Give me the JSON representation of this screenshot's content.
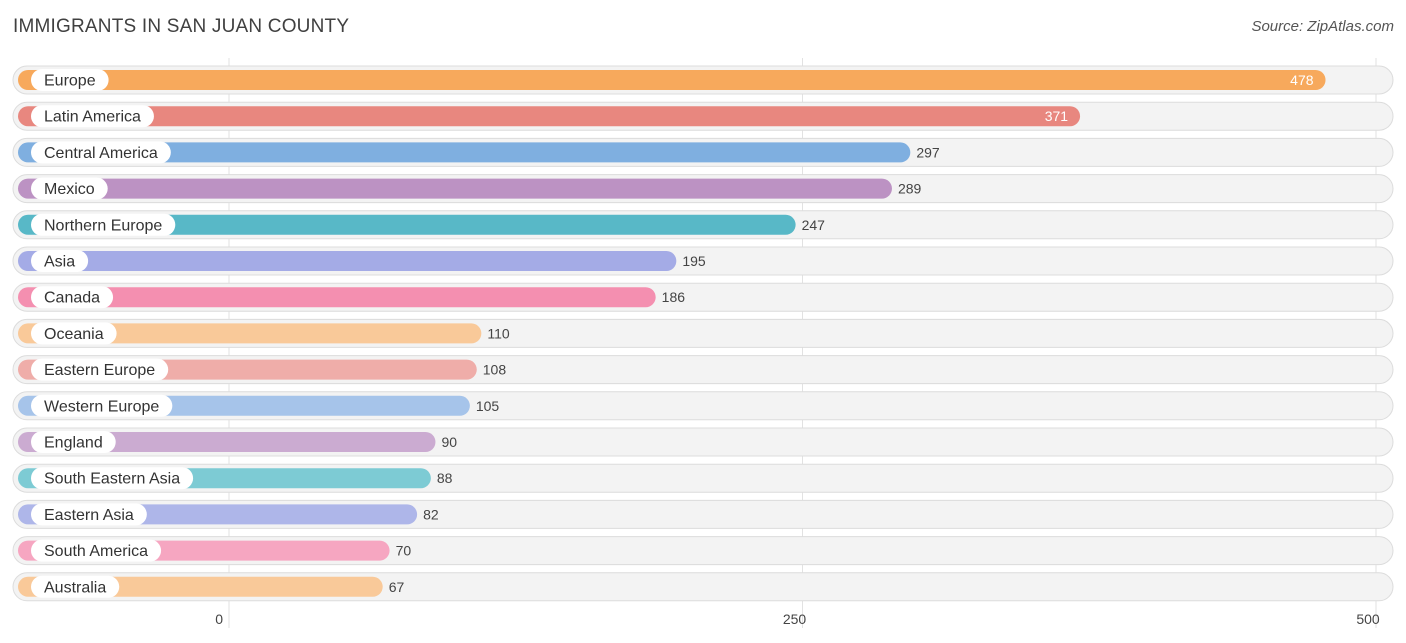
{
  "title": "IMMIGRANTS IN SAN JUAN COUNTY",
  "source": "Source: ZipAtlas.com",
  "chart_data": {
    "type": "bar",
    "orientation": "horizontal",
    "title": "IMMIGRANTS IN SAN JUAN COUNTY",
    "xlim": [
      0,
      500
    ],
    "xticks": [
      0,
      250,
      500
    ],
    "categories": [
      "Europe",
      "Latin America",
      "Central America",
      "Mexico",
      "Northern Europe",
      "Asia",
      "Canada",
      "Oceania",
      "Eastern Europe",
      "Western Europe",
      "England",
      "South Eastern Asia",
      "Eastern Asia",
      "South America",
      "Australia"
    ],
    "values": [
      478,
      371,
      297,
      289,
      247,
      195,
      186,
      110,
      108,
      105,
      90,
      88,
      82,
      70,
      67
    ],
    "colors": [
      "#F7A95C",
      "#E8877F",
      "#7FAFE0",
      "#BC92C3",
      "#58B8C7",
      "#A4ABE6",
      "#F48FB0",
      "#F9C999",
      "#EFADA9",
      "#A6C4EA",
      "#CBABD1",
      "#7DCBD4",
      "#AEB6E9",
      "#F6A6C1",
      "#F9C999"
    ]
  }
}
